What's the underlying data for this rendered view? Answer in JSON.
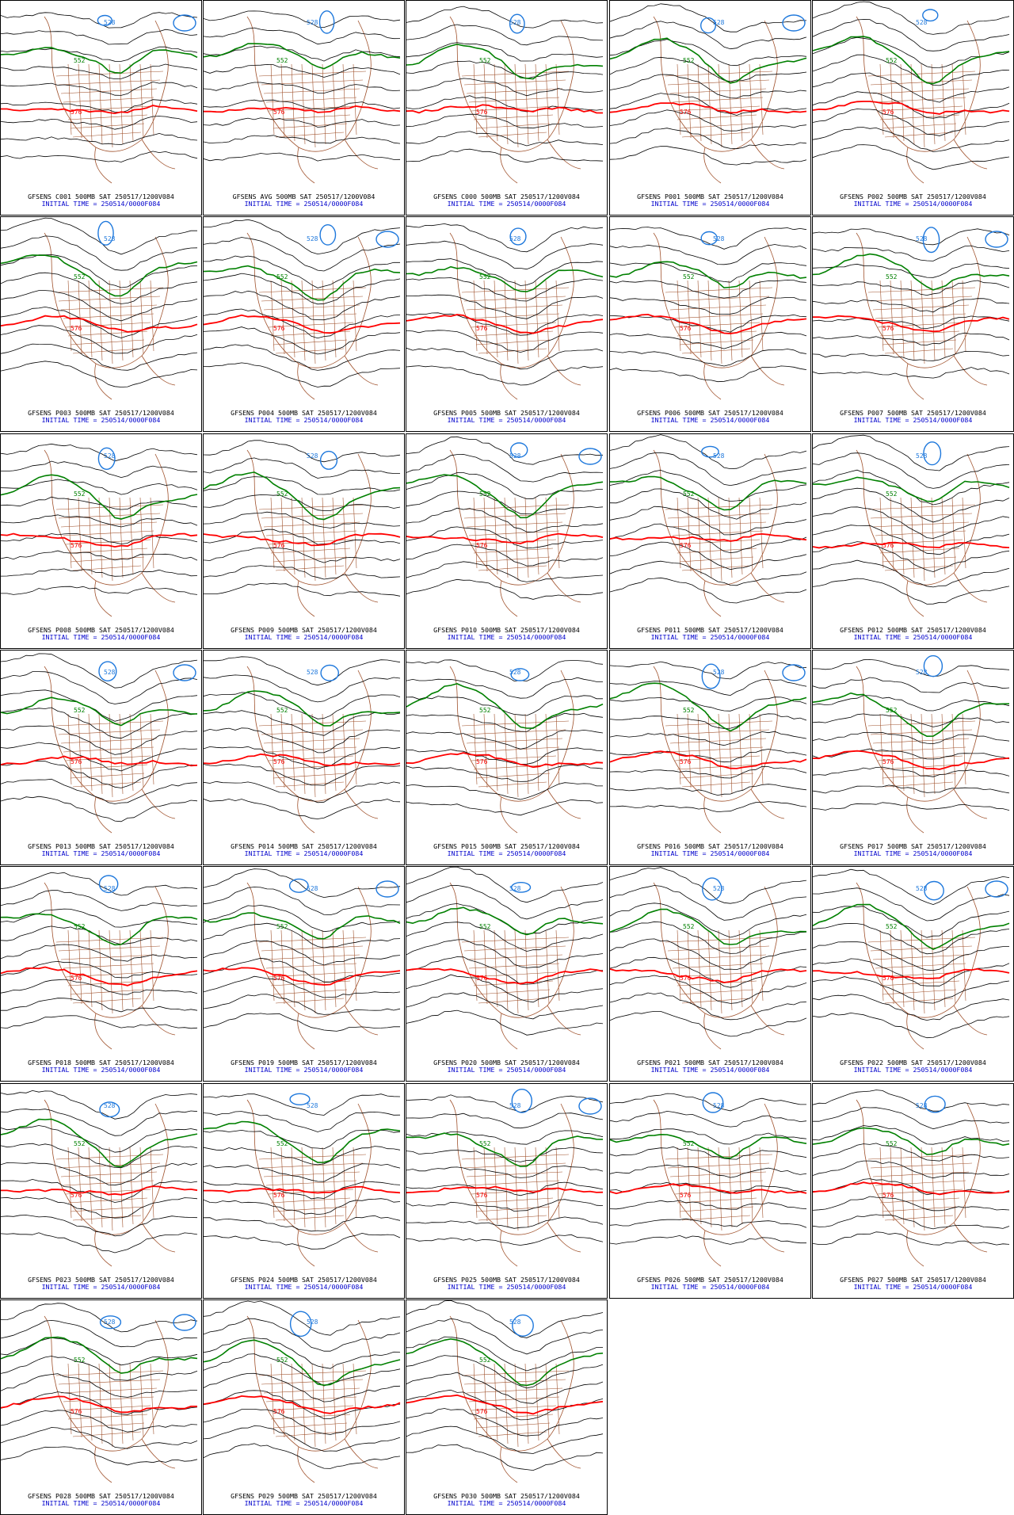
{
  "legend_heights": {
    "green": "552",
    "red": "576",
    "blue": "528"
  },
  "colors": {
    "green": "#008000",
    "red": "#ff0000",
    "blue": "#1e78dc",
    "map": "#a0522d",
    "contour": "#000000",
    "caption_line2": "#0000cc"
  },
  "panels": [
    {
      "title": "GFSENS C001 500MB SAT 250517/1200V084",
      "init": "INITIAL TIME = 250514/0000F084"
    },
    {
      "title": "GFSENS AVG 500MB SAT 250517/1200V084",
      "init": "INITIAL TIME = 250514/0000F084"
    },
    {
      "title": "GFSENS C000 500MB SAT 250517/1200V084",
      "init": "INITIAL TIME = 250514/0000F084"
    },
    {
      "title": "GFSENS P001 500MB SAT 250517/1200V084",
      "init": "INITIAL TIME = 250514/0000F084"
    },
    {
      "title": "GFSENS P002 500MB SAT 250517/1200V084",
      "init": "INITIAL TIME = 250514/0000F084"
    },
    {
      "title": "GFSENS P003 500MB SAT 250517/1200V084",
      "init": "INITIAL TIME = 250514/0000F084"
    },
    {
      "title": "GFSENS P004 500MB SAT 250517/1200V084",
      "init": "INITIAL TIME = 250514/0000F084"
    },
    {
      "title": "GFSENS P005 500MB SAT 250517/1200V084",
      "init": "INITIAL TIME = 250514/0000F084"
    },
    {
      "title": "GFSENS P006 500MB SAT 250517/1200V084",
      "init": "INITIAL TIME = 250514/0000F084"
    },
    {
      "title": "GFSENS P007 500MB SAT 250517/1200V084",
      "init": "INITIAL TIME = 250514/0000F084"
    },
    {
      "title": "GFSENS P008 500MB SAT 250517/1200V084",
      "init": "INITIAL TIME = 250514/0000F084"
    },
    {
      "title": "GFSENS P009 500MB SAT 250517/1200V084",
      "init": "INITIAL TIME = 250514/0000F084"
    },
    {
      "title": "GFSENS P010 500MB SAT 250517/1200V084",
      "init": "INITIAL TIME = 250514/0000F084"
    },
    {
      "title": "GFSENS P011 500MB SAT 250517/1200V084",
      "init": "INITIAL TIME = 250514/0000F084"
    },
    {
      "title": "GFSENS P012 500MB SAT 250517/1200V084",
      "init": "INITIAL TIME = 250514/0000F084"
    },
    {
      "title": "GFSENS P013 500MB SAT 250517/1200V084",
      "init": "INITIAL TIME = 250514/0000F084"
    },
    {
      "title": "GFSENS P014 500MB SAT 250517/1200V084",
      "init": "INITIAL TIME = 250514/0000F084"
    },
    {
      "title": "GFSENS P015 500MB SAT 250517/1200V084",
      "init": "INITIAL TIME = 250514/0000F084"
    },
    {
      "title": "GFSENS P016 500MB SAT 250517/1200V084",
      "init": "INITIAL TIME = 250514/0000F084"
    },
    {
      "title": "GFSENS P017 500MB SAT 250517/1200V084",
      "init": "INITIAL TIME = 250514/0000F084"
    },
    {
      "title": "GFSENS P018 500MB SAT 250517/1200V084",
      "init": "INITIAL TIME = 250514/0000F084"
    },
    {
      "title": "GFSENS P019 500MB SAT 250517/1200V084",
      "init": "INITIAL TIME = 250514/0000F084"
    },
    {
      "title": "GFSENS P020 500MB SAT 250517/1200V084",
      "init": "INITIAL TIME = 250514/0000F084"
    },
    {
      "title": "GFSENS P021 500MB SAT 250517/1200V084",
      "init": "INITIAL TIME = 250514/0000F084"
    },
    {
      "title": "GFSENS P022 500MB SAT 250517/1200V084",
      "init": "INITIAL TIME = 250514/0000F084"
    },
    {
      "title": "GFSENS P023 500MB SAT 250517/1200V084",
      "init": "INITIAL TIME = 250514/0000F084"
    },
    {
      "title": "GFSENS P024 500MB SAT 250517/1200V084",
      "init": "INITIAL TIME = 250514/0000F084"
    },
    {
      "title": "GFSENS P025 500MB SAT 250517/1200V084",
      "init": "INITIAL TIME = 250514/0000F084"
    },
    {
      "title": "GFSENS P026 500MB SAT 250517/1200V084",
      "init": "INITIAL TIME = 250514/0000F084"
    },
    {
      "title": "GFSENS P027 500MB SAT 250517/1200V084",
      "init": "INITIAL TIME = 250514/0000F084"
    },
    {
      "title": "GFSENS P028 500MB SAT 250517/1200V084",
      "init": "INITIAL TIME = 250514/0000F084"
    },
    {
      "title": "GFSENS P029 500MB SAT 250517/1200V084",
      "init": "INITIAL TIME = 250514/0000F084"
    },
    {
      "title": "GFSENS P030 500MB SAT 250517/1200V084",
      "init": "INITIAL TIME = 250514/0000F084"
    }
  ]
}
